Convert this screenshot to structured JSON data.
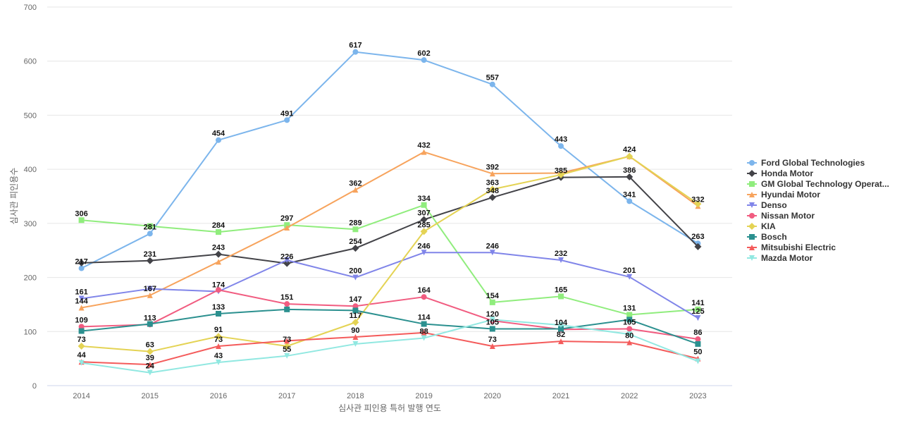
{
  "chart_data": {
    "type": "line",
    "title": "",
    "xlabel": "심사관 피인용 특허 발행 연도",
    "ylabel": "심사관 피인용수",
    "x": [
      "2014",
      "2015",
      "2016",
      "2017",
      "2018",
      "2019",
      "2020",
      "2021",
      "2022",
      "2023"
    ],
    "ylim": [
      0,
      700
    ],
    "yticks": [
      0,
      100,
      200,
      300,
      400,
      500,
      600,
      700
    ],
    "grid": true,
    "legend_position": "right",
    "series": [
      {
        "name": "Ford Global Technologies",
        "legend_label": "Ford Global Technologies",
        "color": "#7cb5ec",
        "marker": "circle",
        "values": [
          217,
          281,
          454,
          491,
          617,
          602,
          557,
          443,
          341,
          263
        ]
      },
      {
        "name": "Honda Motor",
        "legend_label": "Honda Motor",
        "color": "#434348",
        "marker": "diamond",
        "values": [
          227,
          231,
          243,
          226,
          254,
          307,
          348,
          385,
          386,
          257
        ]
      },
      {
        "name": "GM Global Technology Operat...",
        "legend_label": "GM Global Technology Operat...",
        "color": "#90ed7d",
        "marker": "square",
        "values": [
          306,
          295,
          284,
          297,
          289,
          334,
          154,
          165,
          131,
          141
        ]
      },
      {
        "name": "Hyundai Motor",
        "legend_label": "Hyundai Motor",
        "color": "#f7a35c",
        "marker": "triangle",
        "values": [
          144,
          167,
          229,
          292,
          362,
          432,
          392,
          393,
          424,
          332
        ]
      },
      {
        "name": "Denso",
        "legend_label": "Denso",
        "color": "#8085e9",
        "marker": "triangle-down",
        "values": [
          161,
          179,
          174,
          232,
          200,
          246,
          246,
          232,
          201,
          125
        ]
      },
      {
        "name": "Nissan Motor",
        "legend_label": "Nissan Motor",
        "color": "#f15c80",
        "marker": "circle",
        "values": [
          109,
          113,
          177,
          151,
          147,
          164,
          120,
          104,
          105,
          86
        ]
      },
      {
        "name": "KIA",
        "legend_label": "KIA",
        "color": "#e4d354",
        "marker": "diamond",
        "values": [
          73,
          63,
          91,
          73,
          117,
          285,
          363,
          390,
          424,
          336
        ]
      },
      {
        "name": "Bosch",
        "legend_label": "Bosch",
        "color": "#2b908f",
        "marker": "square",
        "values": [
          101,
          114,
          133,
          141,
          139,
          114,
          105,
          105,
          122,
          77
        ]
      },
      {
        "name": "Mitsubishi Electric",
        "legend_label": "Mitsubishi Electric",
        "color": "#f45b5b",
        "marker": "triangle",
        "values": [
          44,
          39,
          73,
          83,
          90,
          98,
          73,
          82,
          80,
          50
        ]
      },
      {
        "name": "Mazda Motor",
        "legend_label": "Mazda Motor",
        "color": "#91e8e1",
        "marker": "triangle-down",
        "values": [
          42,
          24,
          43,
          55,
          77,
          88,
          122,
          112,
          95,
          45
        ]
      }
    ],
    "data_labels": [
      {
        "x": "2014",
        "value": 306
      },
      {
        "x": "2014",
        "value": 217
      },
      {
        "x": "2014",
        "value": 161
      },
      {
        "x": "2014",
        "value": 144
      },
      {
        "x": "2014",
        "value": 109
      },
      {
        "x": "2014",
        "value": 73
      },
      {
        "x": "2014",
        "value": 44
      },
      {
        "x": "2015",
        "value": 281
      },
      {
        "x": "2015",
        "value": 231
      },
      {
        "x": "2015",
        "value": 167
      },
      {
        "x": "2015",
        "value": 113
      },
      {
        "x": "2015",
        "value": 63
      },
      {
        "x": "2015",
        "value": 39
      },
      {
        "x": "2015",
        "value": 24
      },
      {
        "x": "2016",
        "value": 454
      },
      {
        "x": "2016",
        "value": 284
      },
      {
        "x": "2016",
        "value": 243
      },
      {
        "x": "2016",
        "value": 174
      },
      {
        "x": "2016",
        "value": 133
      },
      {
        "x": "2016",
        "value": 91
      },
      {
        "x": "2016",
        "value": 73
      },
      {
        "x": "2016",
        "value": 43
      },
      {
        "x": "2017",
        "value": 491
      },
      {
        "x": "2017",
        "value": 297
      },
      {
        "x": "2017",
        "value": 226
      },
      {
        "x": "2017",
        "value": 151
      },
      {
        "x": "2017",
        "value": 73
      },
      {
        "x": "2017",
        "value": 55
      },
      {
        "x": "2018",
        "value": 617
      },
      {
        "x": "2018",
        "value": 362
      },
      {
        "x": "2018",
        "value": 289
      },
      {
        "x": "2018",
        "value": 254
      },
      {
        "x": "2018",
        "value": 200
      },
      {
        "x": "2018",
        "value": 147
      },
      {
        "x": "2018",
        "value": 117
      },
      {
        "x": "2018",
        "value": 90
      },
      {
        "x": "2019",
        "value": 602
      },
      {
        "x": "2019",
        "value": 432
      },
      {
        "x": "2019",
        "value": 334
      },
      {
        "x": "2019",
        "value": 307
      },
      {
        "x": "2019",
        "value": 285
      },
      {
        "x": "2019",
        "value": 246
      },
      {
        "x": "2019",
        "value": 164
      },
      {
        "x": "2019",
        "value": 114
      },
      {
        "x": "2019",
        "value": 88
      },
      {
        "x": "2020",
        "value": 557
      },
      {
        "x": "2020",
        "value": 392
      },
      {
        "x": "2020",
        "value": 363
      },
      {
        "x": "2020",
        "value": 348
      },
      {
        "x": "2020",
        "value": 246
      },
      {
        "x": "2020",
        "value": 154
      },
      {
        "x": "2020",
        "value": 120
      },
      {
        "x": "2020",
        "value": 105
      },
      {
        "x": "2020",
        "value": 73
      },
      {
        "x": "2021",
        "value": 443
      },
      {
        "x": "2021",
        "value": 385
      },
      {
        "x": "2021",
        "value": 232
      },
      {
        "x": "2021",
        "value": 165
      },
      {
        "x": "2021",
        "value": 104
      },
      {
        "x": "2021",
        "value": 82
      },
      {
        "x": "2022",
        "value": 424
      },
      {
        "x": "2022",
        "value": 386
      },
      {
        "x": "2022",
        "value": 341
      },
      {
        "x": "2022",
        "value": 201
      },
      {
        "x": "2022",
        "value": 131
      },
      {
        "x": "2022",
        "value": 105
      },
      {
        "x": "2022",
        "value": 80
      },
      {
        "x": "2023",
        "value": 332
      },
      {
        "x": "2023",
        "value": 263
      },
      {
        "x": "2023",
        "value": 141
      },
      {
        "x": "2023",
        "value": 125
      },
      {
        "x": "2023",
        "value": 86
      },
      {
        "x": "2023",
        "value": 50
      }
    ]
  }
}
